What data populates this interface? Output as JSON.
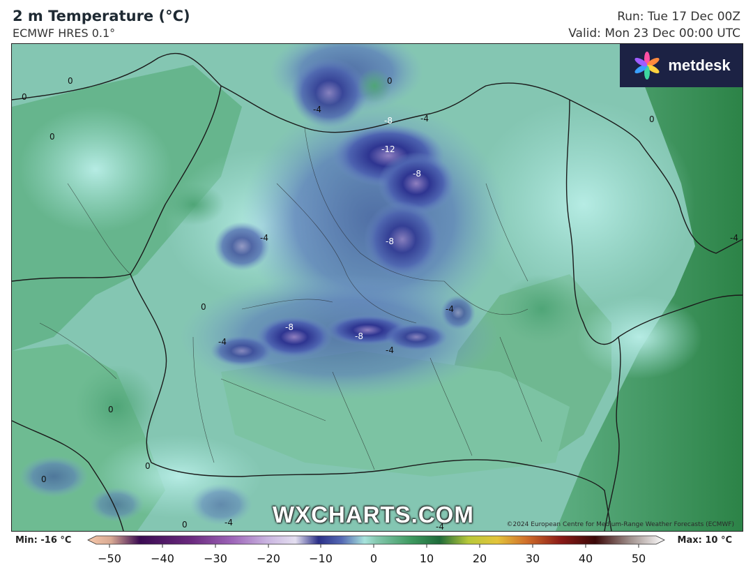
{
  "header": {
    "title": "2 m Temperature (°C)",
    "subtitle": "ECMWF HRES 0.1°",
    "run": "Run: Tue 17 Dec 00Z",
    "valid": "Valid: Mon 23 Dec 00:00 UTC"
  },
  "logo": {
    "text": "metdesk"
  },
  "watermark": "WXCHARTS.COM",
  "copyright": "©2024 European Centre for Medium-Range Weather Forecasts (ECMWF)",
  "map": {
    "contour_labels": [
      "0",
      "0",
      "0",
      "0",
      "0",
      "0",
      "0",
      "0",
      "0",
      "0",
      "-4",
      "-4",
      "-4",
      "-4",
      "-4",
      "-4",
      "-4",
      "-4",
      "-8",
      "-8",
      "-8",
      "-8",
      "-8",
      "-12",
      "-4"
    ]
  },
  "legend": {
    "min": "Min: -16 °C",
    "max": "Max: 10 °C",
    "ticks": [
      "−50",
      "−40",
      "−30",
      "−20",
      "−10",
      "0",
      "10",
      "20",
      "30",
      "40",
      "50"
    ],
    "colors": {
      "cold_extreme": "#f6c7a9",
      "deep_purple": "#3b0b52",
      "violet": "#9d64b8",
      "lilac": "#c9b3e0",
      "navy": "#2a2f87",
      "blue": "#5468b4",
      "cyan": "#a7e3dc",
      "zero": "#86c9b0",
      "green": "#3e9a60",
      "yellow_green": "#b8c93a",
      "orange": "#d1702a",
      "red": "#8b1a17",
      "dark_red": "#3b0808",
      "grey_high": "#cfc7c4"
    }
  }
}
